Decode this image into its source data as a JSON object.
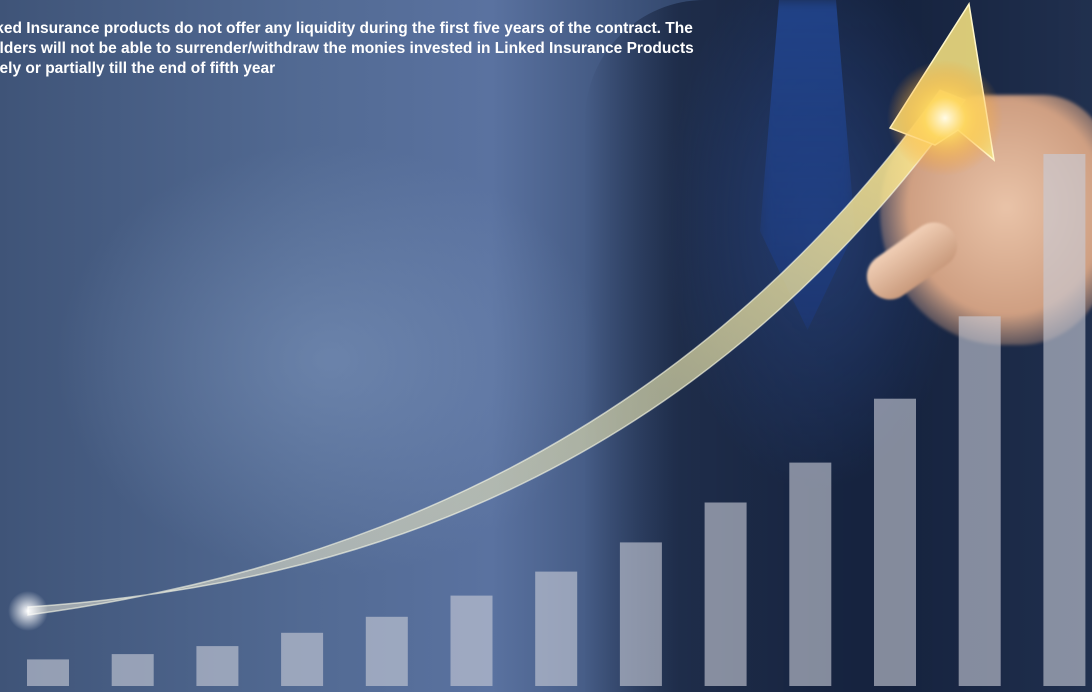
{
  "disclaimer": {
    "line1": "Linked Insurance products do not offer any liquidity during the first five years of the contract. The",
    "line2": "yholders will not be able to surrender/withdraw the monies invested in Linked Insurance Products",
    "line3": "pletely or partially till the end of fifth year"
  },
  "colors": {
    "bar_fill": "#c8ccd6",
    "arrow_glow": "#ffe37a",
    "background_blue": "#4a6290"
  },
  "imagery": {
    "bar_levels": [
      0.05,
      0.06,
      0.075,
      0.1,
      0.13,
      0.17,
      0.215,
      0.27,
      0.345,
      0.42,
      0.54,
      0.695,
      1.0
    ]
  }
}
